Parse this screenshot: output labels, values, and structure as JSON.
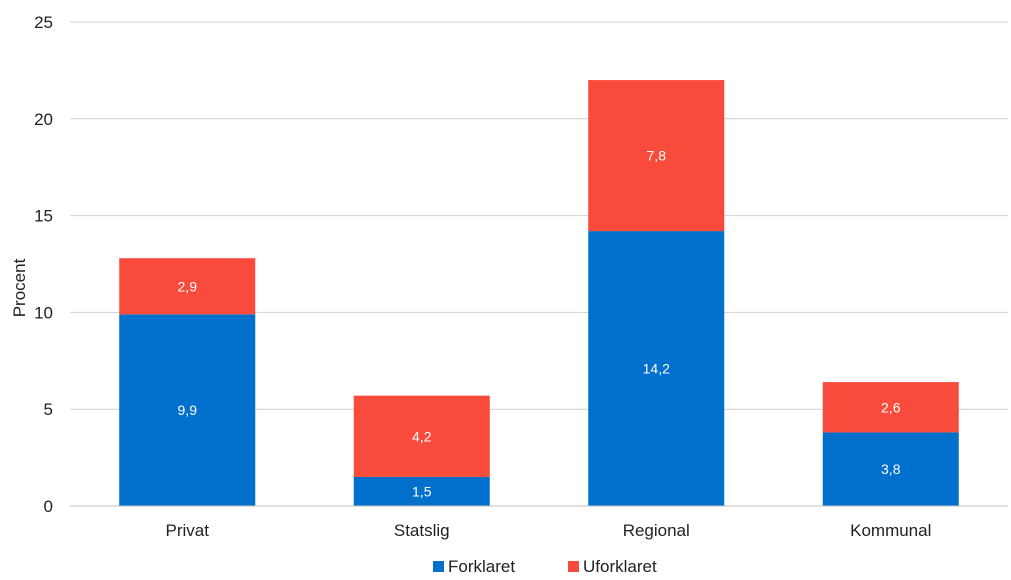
{
  "chart_data": {
    "type": "bar",
    "stacked": true,
    "categories": [
      "Privat",
      "Statslig",
      "Regional",
      "Kommunal"
    ],
    "series": [
      {
        "name": "Forklaret",
        "values": [
          9.9,
          1.5,
          14.2,
          3.8
        ],
        "labels": [
          "9,9",
          "1,5",
          "14,2",
          "3,8"
        ],
        "color": "#0070CC"
      },
      {
        "name": "Uforklaret",
        "values": [
          2.9,
          4.2,
          7.8,
          2.6
        ],
        "labels": [
          "2,9",
          "4,2",
          "7,8",
          "2,6"
        ],
        "color": "#F94B3C"
      }
    ],
    "title": "",
    "xlabel": "",
    "ylabel": "Procent",
    "ylim": [
      0,
      25
    ],
    "yticks": [
      0,
      5,
      10,
      15,
      20,
      25
    ],
    "grid": true,
    "legend_position": "bottom"
  }
}
